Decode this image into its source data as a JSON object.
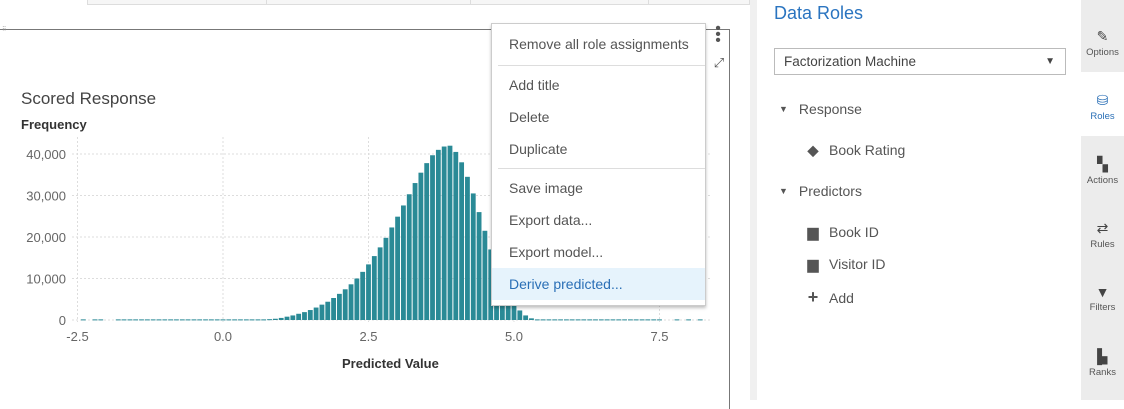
{
  "chart": {
    "title": "Scored Response",
    "ylabel": "Frequency",
    "xlabel": "Predicted Value"
  },
  "chart_data": {
    "type": "bar",
    "title": "Scored Response",
    "xlabel": "Predicted Value",
    "ylabel": "Frequency",
    "xlim": [
      -2.5,
      8.3
    ],
    "ylim": [
      0,
      42000
    ],
    "x_ticks": [
      "-2.5",
      "0.0",
      "2.5",
      "5.0",
      "7.5"
    ],
    "y_ticks": [
      "0",
      "10,000",
      "20,000",
      "30,000",
      "40,000"
    ],
    "grid": true,
    "bar_color": "#2a8a96",
    "bin_width": 0.1,
    "x": [
      -2.4,
      -2.2,
      -2.1,
      -1.8,
      -1.7,
      -1.6,
      -1.5,
      -1.4,
      -1.3,
      -1.2,
      -1.1,
      -1.0,
      -0.9,
      -0.8,
      -0.7,
      -0.6,
      -0.5,
      -0.4,
      -0.3,
      -0.2,
      -0.1,
      0.0,
      0.1,
      0.2,
      0.3,
      0.4,
      0.5,
      0.6,
      0.7,
      0.8,
      0.9,
      1.0,
      1.1,
      1.2,
      1.3,
      1.4,
      1.5,
      1.6,
      1.7,
      1.8,
      1.9,
      2.0,
      2.1,
      2.2,
      2.3,
      2.4,
      2.5,
      2.6,
      2.7,
      2.8,
      2.9,
      3.0,
      3.1,
      3.2,
      3.3,
      3.4,
      3.5,
      3.6,
      3.7,
      3.8,
      3.9,
      4.0,
      4.1,
      4.2,
      4.3,
      4.4,
      4.5,
      4.6,
      4.7,
      4.8,
      4.9,
      5.0,
      5.1,
      5.2,
      5.3,
      5.4,
      5.5,
      5.6,
      5.7,
      5.8,
      5.9,
      6.0,
      6.1,
      6.2,
      6.3,
      6.4,
      6.5,
      6.6,
      6.7,
      6.8,
      6.9,
      7.0,
      7.1,
      7.2,
      7.3,
      7.4,
      7.5,
      7.8,
      8.0,
      8.2
    ],
    "values": [
      150,
      150,
      150,
      150,
      150,
      150,
      150,
      150,
      150,
      150,
      150,
      150,
      150,
      150,
      150,
      150,
      150,
      150,
      150,
      150,
      150,
      150,
      150,
      150,
      150,
      150,
      150,
      150,
      150,
      200,
      300,
      500,
      800,
      1100,
      1500,
      1900,
      2400,
      3000,
      3700,
      4400,
      5300,
      6300,
      7400,
      8600,
      10000,
      11600,
      13400,
      15400,
      17500,
      19800,
      22300,
      24900,
      27600,
      30300,
      33000,
      35500,
      37800,
      39700,
      41000,
      41800,
      42000,
      40500,
      38000,
      34500,
      30500,
      26000,
      21500,
      17000,
      13000,
      9500,
      6500,
      4000,
      2300,
      1100,
      400,
      150,
      150,
      150,
      150,
      150,
      150,
      150,
      150,
      150,
      150,
      150,
      150,
      150,
      150,
      150,
      150,
      150,
      150,
      150,
      150,
      150,
      150,
      150,
      150,
      150
    ]
  },
  "menu": {
    "items": [
      "Remove all role assignments",
      "Add title",
      "Delete",
      "Duplicate",
      "Save image",
      "Export data...",
      "Export model...",
      "Derive predicted..."
    ]
  },
  "roles": {
    "title": "Data Roles",
    "model_select": "Factorization Machine",
    "response_label": "Response",
    "response_items": [
      "Book Rating"
    ],
    "predictors_label": "Predictors",
    "predictor_items": [
      "Book ID",
      "Visitor ID"
    ],
    "add_label": "Add"
  },
  "toolbar": {
    "items": [
      "Options",
      "Roles",
      "Actions",
      "Rules",
      "Filters",
      "Ranks"
    ],
    "active": "Roles"
  },
  "colors": {
    "accent": "#2a74c0",
    "bar": "#2a8a96",
    "highlight": "#e6f3fc"
  }
}
